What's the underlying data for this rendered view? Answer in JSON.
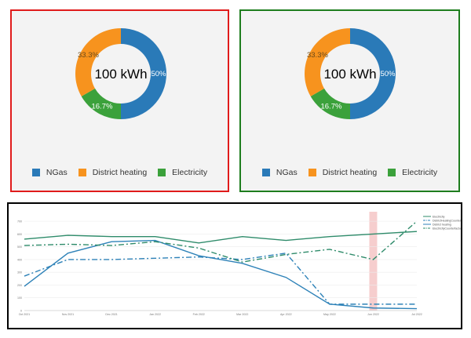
{
  "colors": {
    "ngas": "#2a7ab8",
    "district_heating": "#f7931e",
    "electricity": "#3ba13b",
    "line_green": "#2e8b6a",
    "line_blue": "#2e82b8",
    "highlight": "#f4c2c2"
  },
  "donuts": [
    {
      "center_label": "100 kWh",
      "slices": [
        {
          "name": "NGas",
          "value": 50,
          "label": "50%"
        },
        {
          "name": "Electricity",
          "value": 16.7,
          "label": "16.7%"
        },
        {
          "name": "District heating",
          "value": 33.3,
          "label": "33.3%"
        }
      ],
      "legend": [
        "NGas",
        "District heating",
        "Electricity"
      ]
    },
    {
      "center_label": "100 kWh",
      "slices": [
        {
          "name": "NGas",
          "value": 50,
          "label": "50%"
        },
        {
          "name": "Electricity",
          "value": 16.7,
          "label": "16.7%"
        },
        {
          "name": "District heating",
          "value": 33.3,
          "label": "33.3%"
        }
      ],
      "legend": [
        "NGas",
        "District heating",
        "Electricity"
      ]
    }
  ],
  "chart_data": [
    {
      "type": "pie",
      "categories": [
        "NGas",
        "Electricity",
        "District heating"
      ],
      "values": [
        50,
        16.7,
        33.3
      ],
      "center_label": "100 kWh"
    },
    {
      "type": "pie",
      "categories": [
        "NGas",
        "Electricity",
        "District heating"
      ],
      "values": [
        50,
        16.7,
        33.3
      ],
      "center_label": "100 kWh"
    },
    {
      "type": "line",
      "x": [
        "Oct 2021",
        "Nov 2021",
        "Dec 2021",
        "Jan 2022",
        "Feb 2022",
        "Mar 2022",
        "Apr 2022",
        "May 2022",
        "Jun 2022",
        "Jul 2022"
      ],
      "yticks": [
        "0",
        "100",
        "200",
        "300",
        "400",
        "500",
        "600",
        "700"
      ],
      "ylim": [
        0,
        750
      ],
      "highlight_x": "Jun 2022",
      "series": [
        {
          "name": "Electricity",
          "style": "solid",
          "color_key": "line_green",
          "values": [
            560,
            590,
            580,
            580,
            530,
            580,
            550,
            580,
            600,
            620
          ]
        },
        {
          "name": "DistrictHeatingCounterfactual",
          "style": "dashdot",
          "color_key": "line_blue",
          "values": [
            270,
            400,
            400,
            410,
            420,
            400,
            450,
            50,
            50,
            50
          ]
        },
        {
          "name": "District heating",
          "style": "solid",
          "color_key": "line_blue",
          "values": [
            190,
            450,
            540,
            550,
            430,
            370,
            260,
            50,
            20,
            15
          ]
        },
        {
          "name": "ElectricityCounterfactual",
          "style": "dashdot",
          "color_key": "line_green",
          "values": [
            510,
            520,
            510,
            540,
            490,
            380,
            440,
            480,
            400,
            700
          ]
        }
      ]
    }
  ]
}
